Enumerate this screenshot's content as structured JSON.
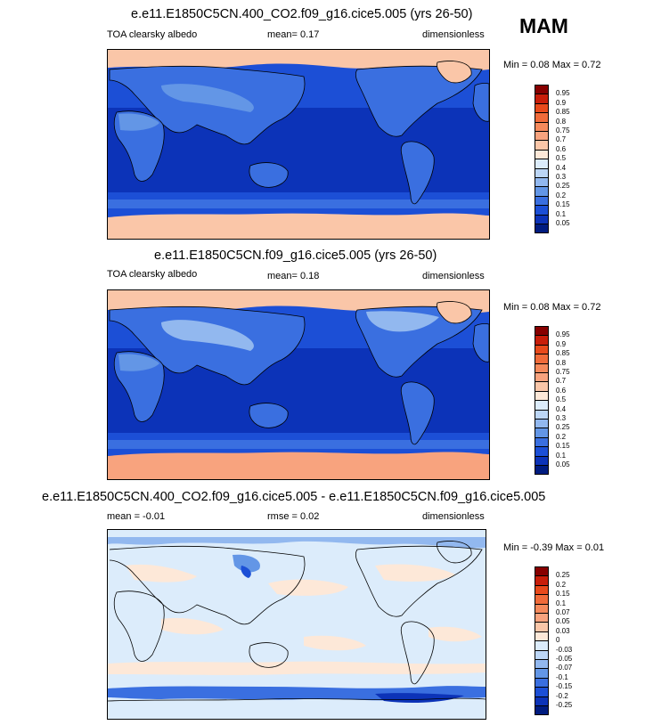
{
  "season": "MAM",
  "panels": [
    {
      "title": "e.e11.E1850C5CN.400_CO2.f09_g16.cice5.005 (yrs 26-50)",
      "left": "TOA clearsky albedo",
      "middle": "mean=   0.17",
      "right": "dimensionless",
      "minmax": "Min =   0.08 Max =   0.72",
      "colorbar": {
        "labels": [
          "0.95",
          "0.9",
          "0.85",
          "0.8",
          "0.75",
          "0.7",
          "0.6",
          "0.5",
          "0.4",
          "0.3",
          "0.25",
          "0.2",
          "0.15",
          "0.1",
          "0.05"
        ],
        "colors": [
          "#870000",
          "#c81e0a",
          "#e84a1c",
          "#f06b3a",
          "#f58a5c",
          "#f8a37e",
          "#fac6a8",
          "#fde8d8",
          "#dcecfb",
          "#bcd6f6",
          "#92b8ef",
          "#6396e6",
          "#3a6fe0",
          "#1c4fd6",
          "#0c33b8",
          "#001c80"
        ]
      }
    },
    {
      "title": "e.e11.E1850C5CN.f09_g16.cice5.005 (yrs 26-50)",
      "left": "TOA clearsky albedo",
      "middle": "mean=   0.18",
      "right": "dimensionless",
      "minmax": "Min =   0.08 Max =   0.72",
      "colorbar": {
        "labels": [
          "0.95",
          "0.9",
          "0.85",
          "0.8",
          "0.75",
          "0.7",
          "0.6",
          "0.5",
          "0.4",
          "0.3",
          "0.25",
          "0.2",
          "0.15",
          "0.1",
          "0.05"
        ],
        "colors": [
          "#870000",
          "#c81e0a",
          "#e84a1c",
          "#f06b3a",
          "#f58a5c",
          "#f8a37e",
          "#fac6a8",
          "#fde8d8",
          "#dcecfb",
          "#bcd6f6",
          "#92b8ef",
          "#6396e6",
          "#3a6fe0",
          "#1c4fd6",
          "#0c33b8",
          "#001c80"
        ]
      }
    },
    {
      "title": "e.e11.E1850C5CN.400_CO2.f09_g16.cice5.005 - e.e11.E1850C5CN.f09_g16.cice5.005",
      "left": "mean =  -0.01",
      "middle": "rmse =   0.02",
      "right": "dimensionless",
      "minmax": "Min =  -0.39 Max =   0.01",
      "colorbar": {
        "labels": [
          "0.25",
          "0.2",
          "0.15",
          "0.1",
          "0.07",
          "0.05",
          "0.03",
          "0",
          "-0.03",
          "-0.05",
          "-0.07",
          "-0.1",
          "-0.15",
          "-0.2",
          "-0.25"
        ],
        "colors": [
          "#870000",
          "#c81e0a",
          "#e84a1c",
          "#f06b3a",
          "#f58a5c",
          "#f8a37e",
          "#fac6a8",
          "#fde8d8",
          "#dcecfb",
          "#bcd6f6",
          "#92b8ef",
          "#6396e6",
          "#3a6fe0",
          "#1c4fd6",
          "#0c33b8",
          "#001c80"
        ]
      }
    }
  ],
  "chart_data": [
    {
      "type": "heatmap",
      "title": "e.e11.E1850C5CN.400_CO2.f09_g16.cice5.005 (yrs 26-50)",
      "subtitle": "TOA clearsky albedo",
      "units": "dimensionless",
      "mean": 0.17,
      "min": 0.08,
      "max": 0.72,
      "levels": [
        0.05,
        0.1,
        0.15,
        0.2,
        0.25,
        0.3,
        0.4,
        0.5,
        0.6,
        0.7,
        0.75,
        0.8,
        0.85,
        0.9,
        0.95
      ],
      "colors": {
        "ocean_tropics": "#0c33b8",
        "ocean_midlat": "#1c4fd6",
        "land": "#3a6fe0",
        "polar": "#fac6a8"
      }
    },
    {
      "type": "heatmap",
      "title": "e.e11.E1850C5CN.f09_g16.cice5.005 (yrs 26-50)",
      "subtitle": "TOA clearsky albedo",
      "units": "dimensionless",
      "mean": 0.18,
      "min": 0.08,
      "max": 0.72,
      "levels": [
        0.05,
        0.1,
        0.15,
        0.2,
        0.25,
        0.3,
        0.4,
        0.5,
        0.6,
        0.7,
        0.75,
        0.8,
        0.85,
        0.9,
        0.95
      ],
      "colors": {
        "ocean_tropics": "#0c33b8",
        "ocean_midlat": "#1c4fd6",
        "land": "#3a6fe0",
        "polar": "#f8a37e"
      }
    },
    {
      "type": "heatmap",
      "title": "e.e11.E1850C5CN.400_CO2.f09_g16.cice5.005 - e.e11.E1850C5CN.f09_g16.cice5.005",
      "units": "dimensionless",
      "mean": -0.01,
      "rmse": 0.02,
      "min": -0.39,
      "max": 0.01,
      "levels": [
        -0.25,
        -0.2,
        -0.15,
        -0.1,
        -0.07,
        -0.05,
        -0.03,
        0,
        0.03,
        0.05,
        0.07,
        0.1,
        0.15,
        0.2,
        0.25
      ],
      "colors": {
        "background": "#dcecfb",
        "positive": "#fde8d8",
        "negative": "#6396e6",
        "strong_negative": "#1c4fd6"
      }
    }
  ]
}
